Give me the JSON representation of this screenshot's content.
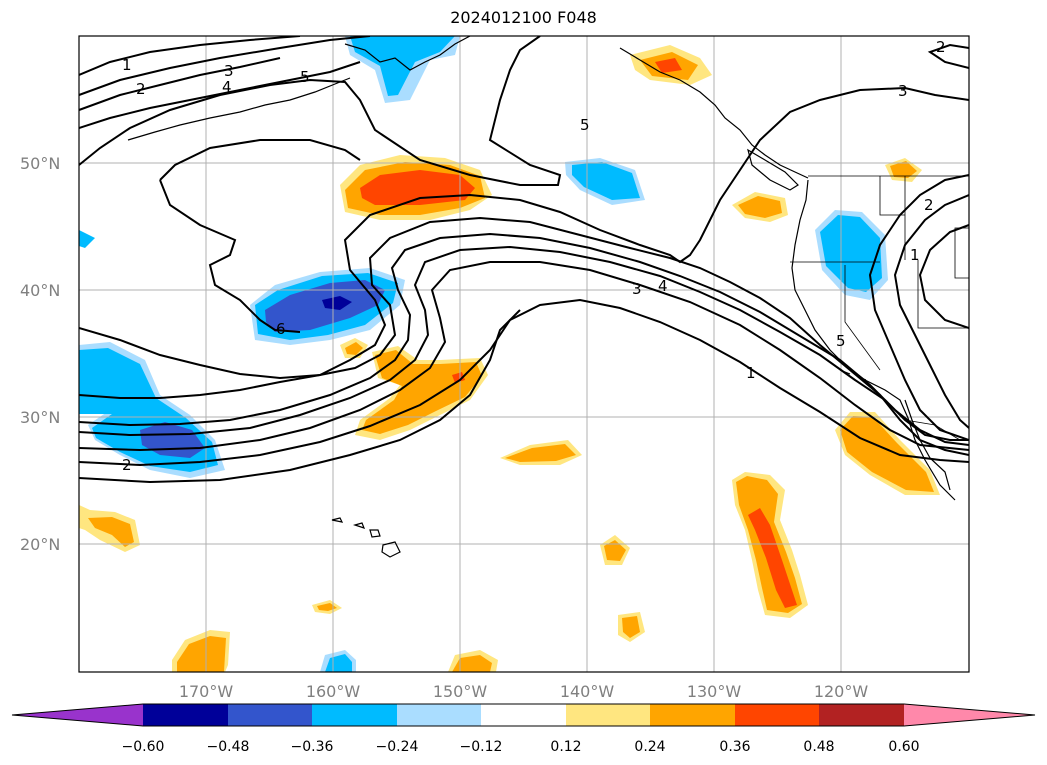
{
  "title": "2024012100 F048",
  "lat_labels": [
    "50°N",
    "40°N",
    "30°N",
    "20°N"
  ],
  "lon_labels": [
    "170°W",
    "160°W",
    "150°W",
    "140°W",
    "130°W",
    "120°W"
  ],
  "colorbar": {
    "ticks": [
      "−0.60",
      "−0.48",
      "−0.36",
      "−0.24",
      "−0.12",
      "0.12",
      "0.24",
      "0.36",
      "0.48",
      "0.60"
    ],
    "colors": [
      "#9933cc",
      "#000099",
      "#3355cc",
      "#00bbff",
      "#aaddff",
      "#ffffff",
      "#ffe680",
      "#ffa500",
      "#ff4500",
      "#b22222",
      "#ff88aa"
    ]
  },
  "contour_labels": [
    "1",
    "2",
    "3",
    "4",
    "5",
    "5",
    "2",
    "6",
    "3",
    "4",
    "1",
    "5",
    "2",
    "1",
    "3",
    "2"
  ],
  "shading_colors": {
    "light_blue": "#aaddff",
    "blue": "#00bbff",
    "royal": "#3355cc",
    "navy": "#000099",
    "yellow": "#ffe680",
    "orange": "#ffa500",
    "red": "#ff4500"
  }
}
